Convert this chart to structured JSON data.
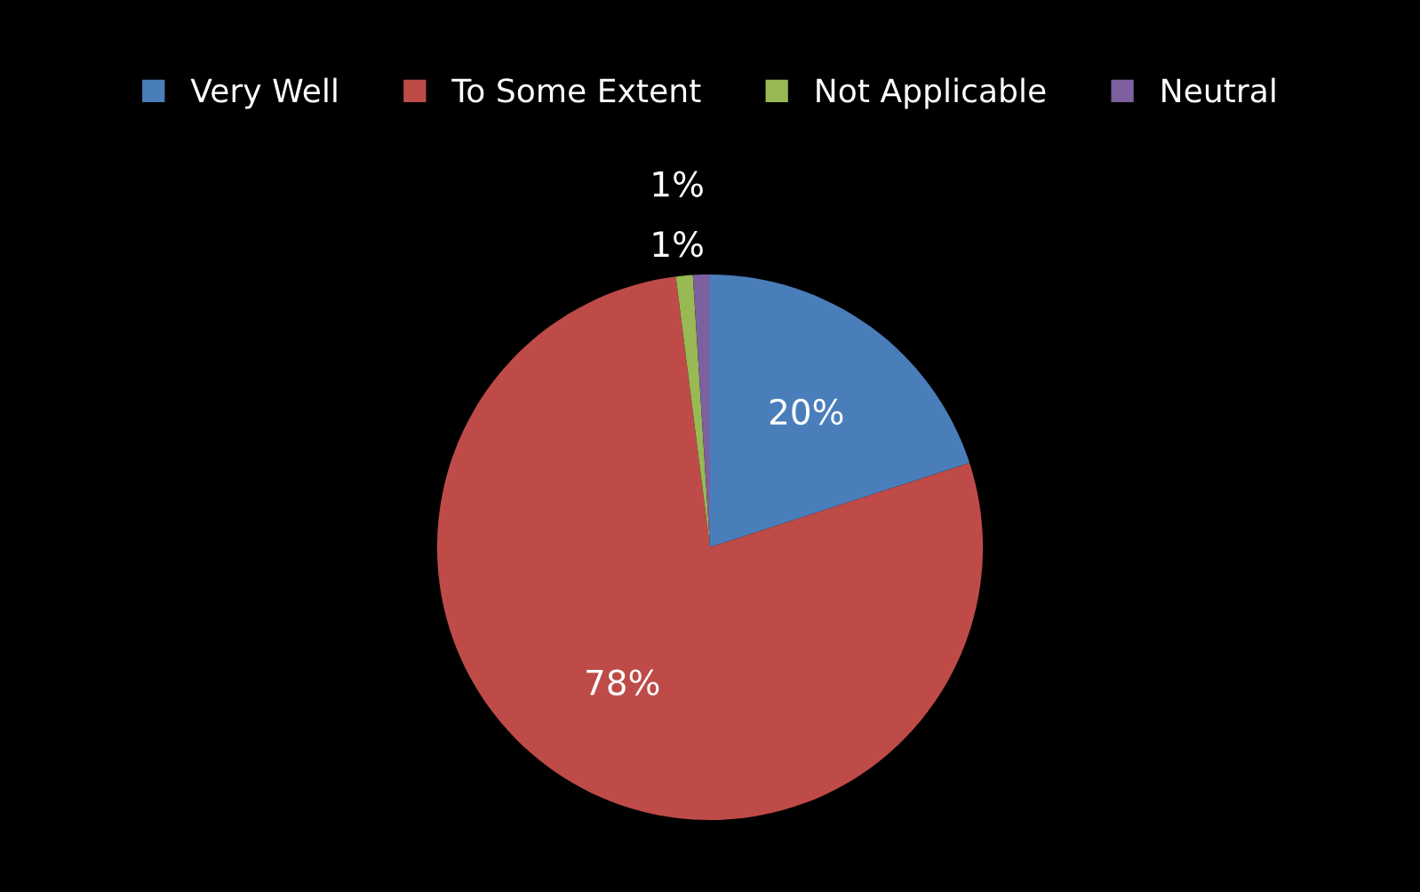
{
  "chart_data": {
    "type": "pie",
    "categories": [
      "Very Well",
      "To Some Extent",
      "Not Applicable",
      "Neutral"
    ],
    "values": [
      20,
      78,
      1,
      1
    ],
    "colors": [
      "#4a7ebb",
      "#be4b48",
      "#98b954",
      "#7d60a0"
    ],
    "value_labels": [
      "20%",
      "78%",
      "1%",
      "1%"
    ],
    "legend": "top"
  }
}
